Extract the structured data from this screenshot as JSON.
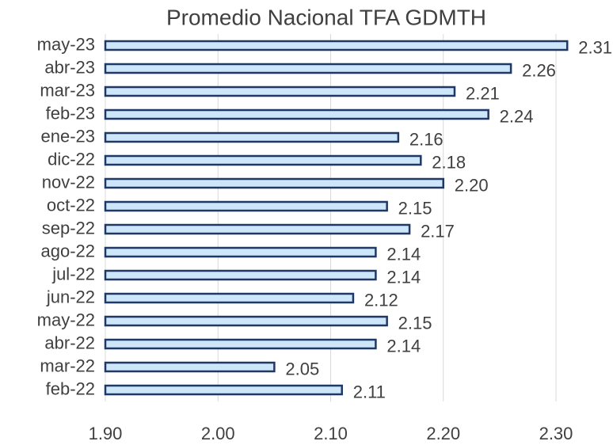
{
  "chart_data": {
    "type": "hbar",
    "title": "Promedio Nacional TFA GDMTH",
    "categories": [
      "may-23",
      "abr-23",
      "mar-23",
      "feb-23",
      "ene-23",
      "dic-22",
      "nov-22",
      "oct-22",
      "sep-22",
      "ago-22",
      "jul-22",
      "jun-22",
      "may-22",
      "abr-22",
      "mar-22",
      "feb-22"
    ],
    "values": [
      2.31,
      2.26,
      2.21,
      2.24,
      2.16,
      2.18,
      2.2,
      2.15,
      2.17,
      2.14,
      2.14,
      2.12,
      2.15,
      2.14,
      2.05,
      2.11
    ],
    "value_labels": [
      "2.31",
      "2.26",
      "2.21",
      "2.24",
      "2.16",
      "2.18",
      "2.20",
      "2.15",
      "2.17",
      "2.14",
      "2.14",
      "2.12",
      "2.15",
      "2.14",
      "2.05",
      "2.11"
    ],
    "color": "#cde6fa",
    "edge_color": "#1f3864",
    "xlim": [
      1.9,
      2.3
    ],
    "xticks": [
      {
        "value": 1.9,
        "label": "1.90"
      },
      {
        "value": 2.0,
        "label": "2.00"
      },
      {
        "value": 2.1,
        "label": "2.10"
      },
      {
        "value": 2.2,
        "label": "2.20"
      },
      {
        "value": 2.3,
        "label": "2.30"
      }
    ],
    "grid": true
  }
}
